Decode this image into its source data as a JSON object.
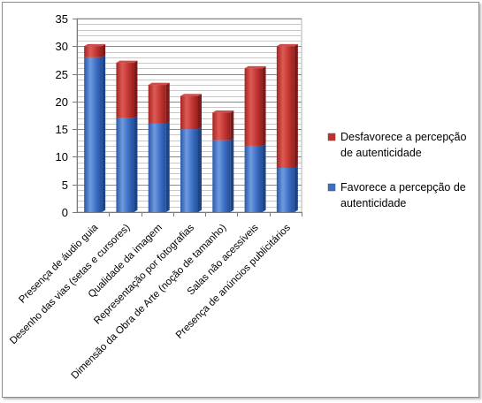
{
  "chart_data": {
    "type": "bar",
    "stacked": true,
    "categories": [
      "Presença de áudio guia",
      "Desenho das vias (setas e cursores)",
      "Qualidade da imagem",
      "Representação por fotografias",
      "Dimensão da Obra de Arte (noção de tamanho)",
      "Salas não acessíveis",
      "Presença de anúncios publicitários"
    ],
    "series": [
      {
        "name": "Favorece a percepção de autenticidade",
        "legend_lines": [
          "Favorece a percepção de",
          "autenticidade"
        ],
        "color": "#3b6fc4",
        "values": [
          28,
          17,
          16,
          15,
          13,
          12,
          8
        ]
      },
      {
        "name": "Desfavorece a percepção de autenticidade",
        "legend_lines": [
          "Desfavorece a percepção",
          "de autenticidade"
        ],
        "color": "#c0302c",
        "values": [
          2,
          10,
          7,
          6,
          5,
          14,
          22
        ]
      }
    ],
    "ylim": [
      0,
      35
    ],
    "yticks": [
      "0",
      "5",
      "10",
      "15",
      "20",
      "25",
      "30",
      "35"
    ],
    "grid": true,
    "legend_position": "right"
  }
}
